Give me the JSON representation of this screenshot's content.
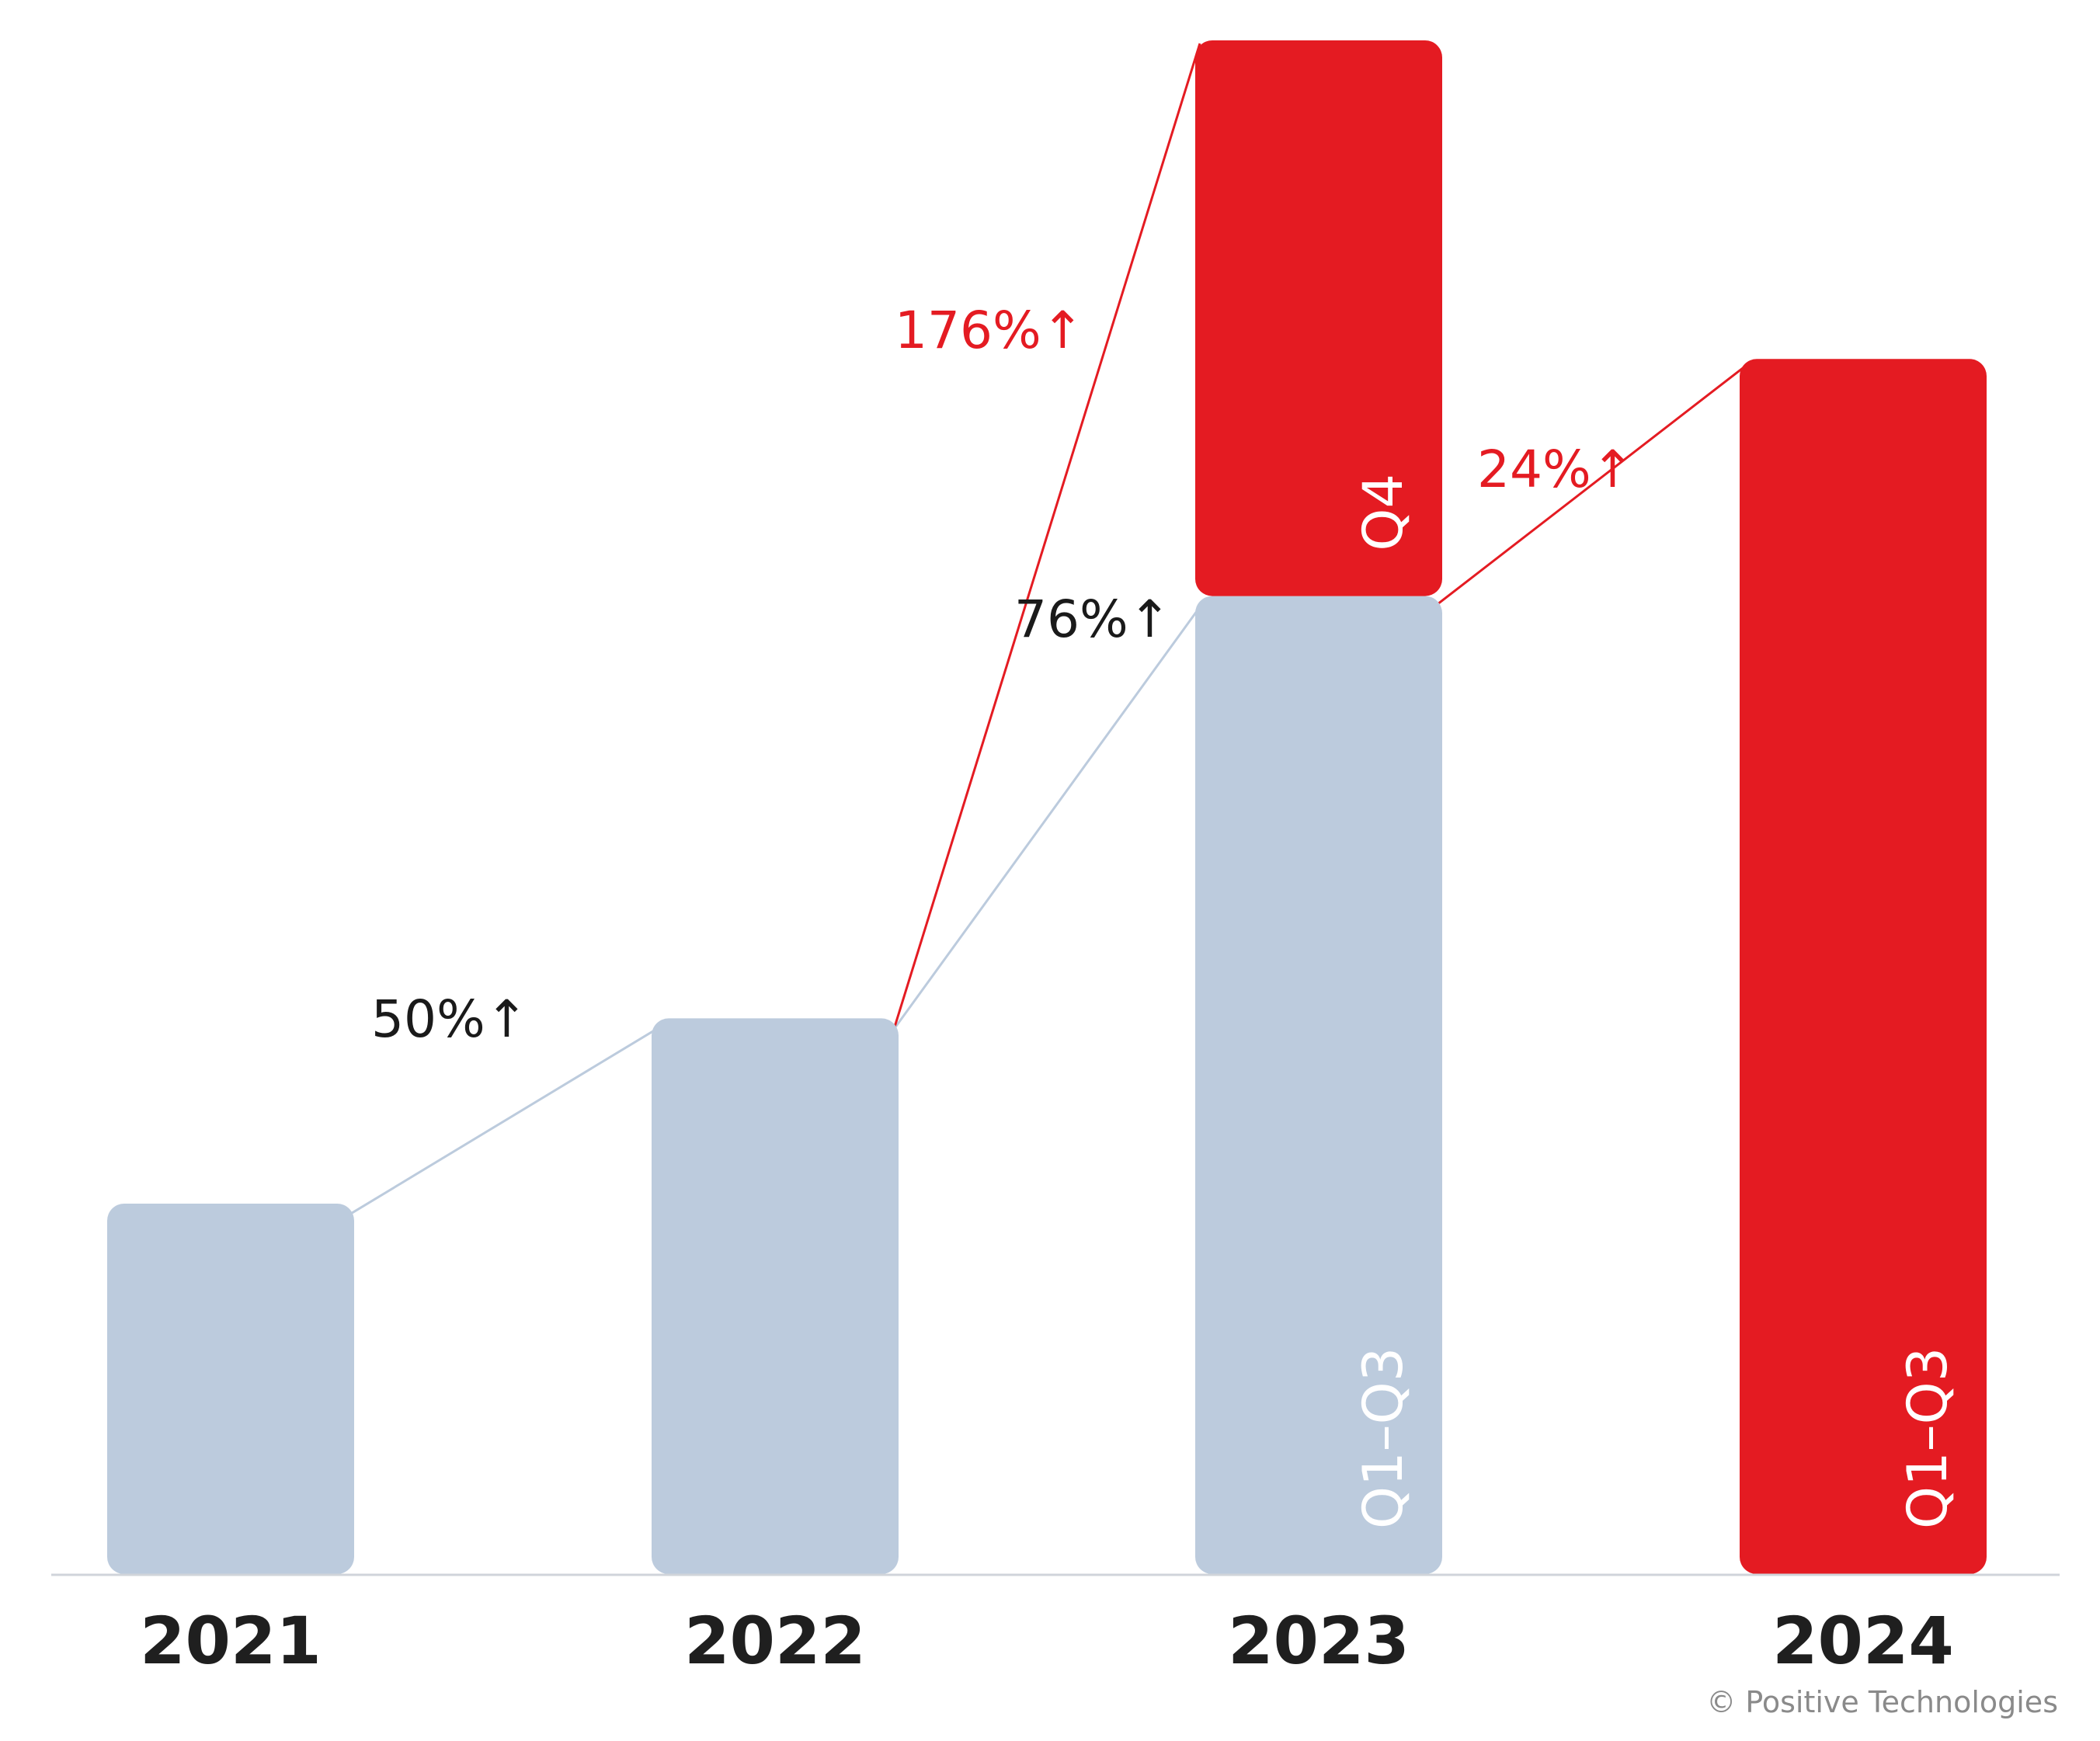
{
  "colors": {
    "previous": "#bccbdd",
    "current": "#e41b22",
    "axis": "#d0d4da",
    "label_dark": "#1a1a1a"
  },
  "chart_data": {
    "type": "bar",
    "stacked": true,
    "categories": [
      "2021",
      "2022",
      "2023",
      "2024"
    ],
    "series": [
      {
        "name": "Q1–Q3",
        "color": "#bccbdd",
        "values": [
          100,
          150,
          264,
          0
        ]
      },
      {
        "name": "Q4",
        "color": "#e41b22",
        "values": [
          0,
          0,
          150,
          0
        ]
      },
      {
        "name": "Q1–Q3",
        "color": "#e41b22",
        "values": [
          0,
          0,
          0,
          328
        ]
      }
    ],
    "segment_labels": [
      {
        "category": "2023",
        "series": 0,
        "text": "Q1–Q3"
      },
      {
        "category": "2023",
        "series": 1,
        "text": "Q4"
      },
      {
        "category": "2024",
        "series": 2,
        "text": "Q1–Q3"
      }
    ],
    "growth": [
      {
        "from": "2021",
        "to": "2022",
        "text": "50%↑",
        "color": "#1a1a1a",
        "basis": "total"
      },
      {
        "from": "2022",
        "to": "2023",
        "text": "76%↑",
        "color": "#1a1a1a",
        "basis": "q1-q3"
      },
      {
        "from": "2022",
        "to": "2023",
        "text": "176%↑",
        "color": "#e41b22",
        "basis": "total"
      },
      {
        "from": "2023",
        "to": "2024",
        "text": "24%↑",
        "color": "#e41b22",
        "basis": "q1-q3"
      }
    ],
    "ylim": [
      0,
      414
    ],
    "grid": false,
    "legend": "none"
  },
  "copyright": "© Positive Technologies"
}
